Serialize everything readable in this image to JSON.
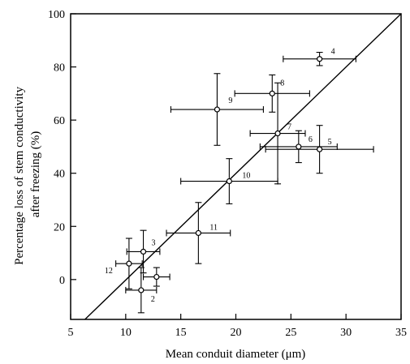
{
  "chart_data": {
    "type": "scatter",
    "xlabel": "Mean conduit diameter (μm)",
    "ylabel_lines": [
      "Percentage loss of stem conductivity",
      "after freezing (%)"
    ],
    "xlim": [
      5,
      35
    ],
    "ylim": [
      -15,
      100
    ],
    "xticks": [
      5,
      10,
      15,
      20,
      25,
      30,
      35
    ],
    "yticks": [
      0,
      20,
      40,
      60,
      80,
      100
    ],
    "grid": false,
    "legend": "none",
    "points": [
      {
        "label": "1",
        "x": 12.8,
        "y": 1,
        "xerr": 1.2,
        "yerr": 3.5
      },
      {
        "label": "2",
        "x": 11.4,
        "y": -4,
        "xerr": 1.4,
        "yerr": 8.5
      },
      {
        "label": "3",
        "x": 11.6,
        "y": 10.5,
        "xerr": 1.5,
        "yerr": 8
      },
      {
        "label": "4",
        "x": 27.6,
        "y": 83,
        "xerr": 3.3,
        "yerr": 2.5
      },
      {
        "label": "5",
        "x": 27.6,
        "y": 49,
        "xerr": 4.9,
        "yerr": 9
      },
      {
        "label": "6",
        "x": 25.7,
        "y": 50,
        "xerr": 3.5,
        "yerr": 6
      },
      {
        "label": "7",
        "x": 23.8,
        "y": 55,
        "xerr": 2.5,
        "yerr": 19
      },
      {
        "label": "8",
        "x": 23.3,
        "y": 70,
        "xerr": 3.4,
        "yerr": 7
      },
      {
        "label": "9",
        "x": 18.3,
        "y": 64,
        "xerr": 4.2,
        "yerr": 13.5
      },
      {
        "label": "10",
        "x": 19.4,
        "y": 37,
        "xerr": 4.4,
        "yerr": 8.5
      },
      {
        "label": "11",
        "x": 16.6,
        "y": 17.5,
        "xerr": 2.9,
        "yerr": 11.5
      },
      {
        "label": "12",
        "x": 10.3,
        "y": 6,
        "xerr": 1.2,
        "yerr": 9.5
      }
    ],
    "fit_line": {
      "x": [
        6.3,
        35
      ],
      "y": [
        -15,
        100
      ]
    }
  }
}
